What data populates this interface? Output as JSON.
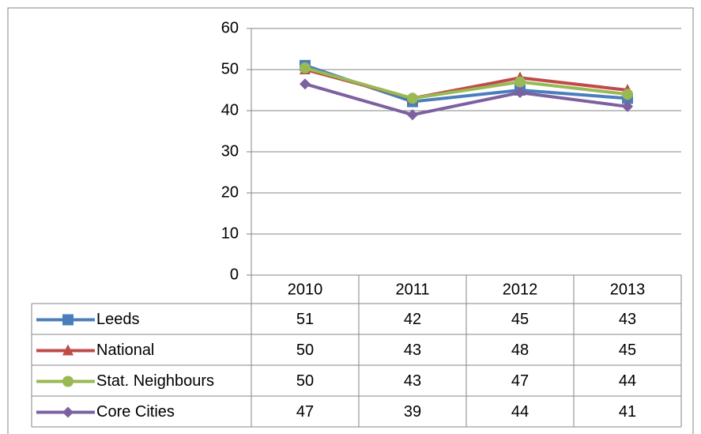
{
  "chart_data": {
    "type": "line",
    "categories": [
      "2010",
      "2011",
      "2012",
      "2013"
    ],
    "series": [
      {
        "name": "Leeds",
        "color": "#4a7ebb",
        "marker": "square",
        "values": [
          51,
          42.2,
          45,
          43
        ],
        "value_labels": [
          "51",
          "42",
          "45",
          "43"
        ]
      },
      {
        "name": "National",
        "color": "#be4b48",
        "marker": "triangle",
        "values": [
          50,
          43,
          48,
          45
        ],
        "value_labels": [
          "50",
          "43",
          "48",
          "45"
        ]
      },
      {
        "name": "Stat. Neighbours",
        "color": "#98b954",
        "marker": "circle",
        "values": [
          50.4,
          43,
          47,
          44
        ],
        "value_labels": [
          "50",
          "43",
          "47",
          "44"
        ]
      },
      {
        "name": "Core Cities",
        "color": "#7d60a0",
        "marker": "diamond",
        "values": [
          46.5,
          39,
          44.4,
          41
        ],
        "value_labels": [
          "47",
          "39",
          "44",
          "41"
        ]
      }
    ],
    "ylim": [
      0,
      60
    ],
    "yticks": [
      0,
      10,
      20,
      30,
      40,
      50,
      60
    ],
    "grid": true,
    "data_table": true
  }
}
